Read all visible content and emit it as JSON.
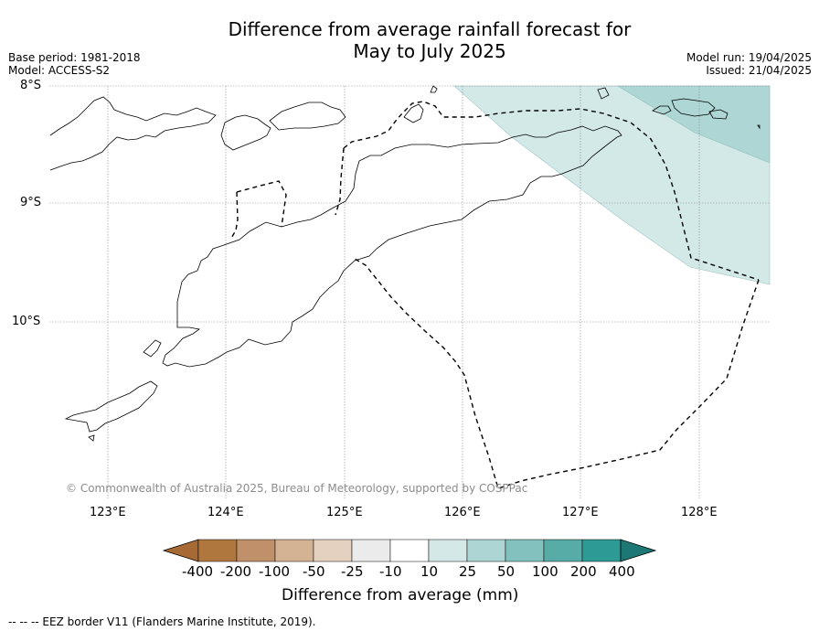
{
  "title": {
    "line1": "Difference from average rainfall forecast for",
    "line2": "May to July 2025"
  },
  "meta": {
    "base_period": "Base period: 1981-2018",
    "model": "Model: ACCESS-S2",
    "model_run": "Model run: 19/04/2025",
    "issued": "Issued: 21/04/2025"
  },
  "map": {
    "lat_labels": [
      "8°S",
      "9°S",
      "10°S"
    ],
    "lon_labels": [
      "123°E",
      "124°E",
      "125°E",
      "126°E",
      "127°E",
      "128°E"
    ],
    "copyright": "© Commonwealth of Australia 2025, Bureau of Meteorology, supported by COSPPac",
    "shaded_regions": [
      {
        "category": "10 to 25 mm",
        "color": "#d3e9e7"
      },
      {
        "category": "25 to 50 mm",
        "color": "#aed6d4"
      }
    ]
  },
  "colorbar": {
    "title": "Difference from average (mm)",
    "tick_labels": [
      "-400",
      "-200",
      "-100",
      "-50",
      "-25",
      "-10",
      "10",
      "25",
      "50",
      "100",
      "200",
      "400"
    ],
    "colors": [
      "#a86a35",
      "#af773e",
      "#c0906a",
      "#d4b294",
      "#e4d1c0",
      "#ebebeb",
      "#ffffff",
      "#d4e9e7",
      "#acd5d3",
      "#82c1bd",
      "#58aca8",
      "#2e9a96",
      "#1d7775"
    ]
  },
  "legend": {
    "eez": "--  --  -- EEZ border V11 (Flanders Marine Institute, 2019)."
  }
}
